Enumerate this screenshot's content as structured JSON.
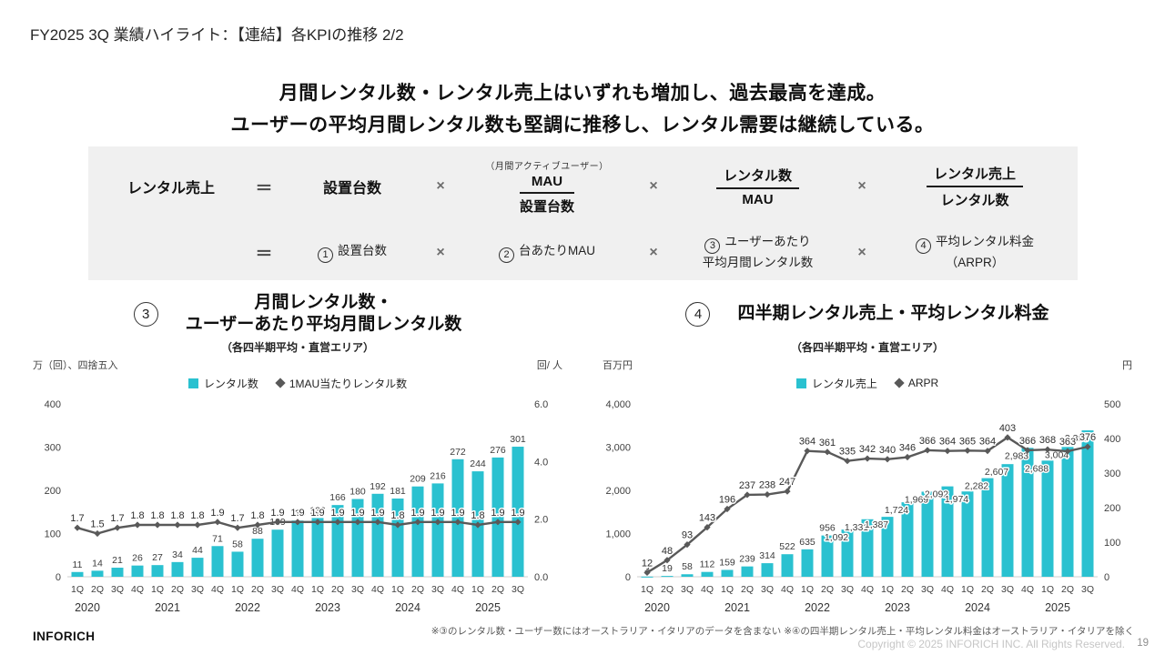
{
  "slide": {
    "title": "FY2025 3Q 業績ハイライト：【連結】各KPIの推移 2/2",
    "headline_line1": "月間レンタル数・レンタル売上はいずれも増加し、過去最高を達成。",
    "headline_line2": "ユーザーの平均月間レンタル数も堅調に推移し、レンタル需要は継続している。",
    "footnote": "※③のレンタル数・ユーザー数にはオーストラリア・イタリアのデータを含まない ※④の四半期レンタル売上・平均レンタル料金はオーストラリア・イタリアを除く",
    "logo": "INFORICH",
    "copyright": "Copyright © 2025 INFORICH INC. All Rights Reserved.",
    "page_number": "19"
  },
  "formula": {
    "lhs": "レンタル売上",
    "eq": "＝",
    "times": "×",
    "row1": {
      "term1": "設置台数",
      "frac1_note": "（月間アクティブユーザー）",
      "frac1_num": "MAU",
      "frac1_den": "設置台数",
      "frac2_num": "レンタル数",
      "frac2_den": "MAU",
      "frac3_num": "レンタル売上",
      "frac3_den": "レンタル数"
    },
    "row2": {
      "t1_num": "1",
      "t1_text": "設置台数",
      "t2_num": "2",
      "t2_text": "台あたりMAU",
      "t3_num": "3",
      "t3_line1": "ユーザーあたり",
      "t3_line2": "平均月間レンタル数",
      "t4_num": "4",
      "t4_line1": "平均レンタル料金",
      "t4_line2": "（ARPR）"
    }
  },
  "chart_data": [
    {
      "type": "bar+line",
      "badge_number": "3",
      "title_line1": "月間レンタル数・",
      "title_line2": "ユーザーあたり平均月間レンタル数",
      "subtitle": "（各四半期平均・直営エリア）",
      "legend": [
        {
          "label": "レンタル数",
          "type": "bar",
          "color": "#2ac1d0"
        },
        {
          "label": "1MAU当たりレンタル数",
          "type": "line",
          "color": "#595959"
        }
      ],
      "left_axis": {
        "unit": "万（回）、四捨五入",
        "ticks": [
          "0",
          "100",
          "200",
          "300",
          "400"
        ],
        "max": 400
      },
      "right_axis": {
        "unit": "回/ 人",
        "ticks": [
          "0.0",
          "2.0",
          "4.0",
          "6.0"
        ],
        "max": 6
      },
      "quarters": [
        "1Q",
        "2Q",
        "3Q",
        "4Q",
        "1Q",
        "2Q",
        "3Q",
        "4Q",
        "1Q",
        "2Q",
        "3Q",
        "4Q",
        "1Q",
        "2Q",
        "3Q",
        "4Q",
        "1Q",
        "2Q",
        "3Q",
        "4Q",
        "1Q",
        "2Q",
        "3Q"
      ],
      "years": [
        {
          "label": "2020",
          "quarters": 4
        },
        {
          "label": "2021",
          "quarters": 4
        },
        {
          "label": "2022",
          "quarters": 4
        },
        {
          "label": "2023",
          "quarters": 4
        },
        {
          "label": "2024",
          "quarters": 4
        },
        {
          "label": "2025",
          "quarters": 3
        }
      ],
      "bars": [
        11,
        14,
        21,
        26,
        27,
        34,
        44,
        71,
        58,
        88,
        109,
        130,
        136,
        166,
        180,
        192,
        181,
        209,
        216,
        272,
        244,
        276,
        301
      ],
      "bar_labels": [
        "11",
        "14",
        "21",
        "26",
        "27",
        "34",
        "44",
        "71",
        "58",
        "88",
        "109",
        "130",
        "136",
        "166",
        "180",
        "192",
        "181",
        "209",
        "216",
        "272",
        "244",
        "276",
        "301"
      ],
      "line": [
        1.7,
        1.5,
        1.7,
        1.8,
        1.8,
        1.8,
        1.8,
        1.9,
        1.7,
        1.8,
        1.9,
        1.9,
        1.9,
        1.9,
        1.9,
        1.9,
        1.8,
        1.9,
        1.9,
        1.9,
        1.8,
        1.9,
        1.9
      ],
      "line_labels": [
        "1.7",
        "1.5",
        "1.7",
        "1.8",
        "1.8",
        "1.8",
        "1.8",
        "1.9",
        "1.7",
        "1.8",
        "1.9",
        "1.9",
        "1.9",
        "1.9",
        "1.9",
        "1.9",
        "1.8",
        "1.9",
        "1.9",
        "1.9",
        "1.8",
        "1.9",
        "1.9"
      ],
      "colors": {
        "bar": "#2ac1d0",
        "line": "#595959"
      }
    },
    {
      "type": "bar+line",
      "badge_number": "4",
      "title_line1": "四半期レンタル売上・平均レンタル料金",
      "subtitle": "（各四半期平均・直営エリア）",
      "legend": [
        {
          "label": "レンタル売上",
          "type": "bar",
          "color": "#2ac1d0"
        },
        {
          "label": "ARPR",
          "type": "line",
          "color": "#595959"
        }
      ],
      "left_axis": {
        "unit": "百万円",
        "ticks": [
          "0",
          "1,000",
          "2,000",
          "3,000",
          "4,000"
        ],
        "max": 4000
      },
      "right_axis": {
        "unit": "円",
        "ticks": [
          "0",
          "100",
          "200",
          "300",
          "400",
          "500"
        ],
        "max": 500
      },
      "quarters": [
        "1Q",
        "2Q",
        "3Q",
        "4Q",
        "1Q",
        "2Q",
        "3Q",
        "4Q",
        "1Q",
        "2Q",
        "3Q",
        "4Q",
        "1Q",
        "2Q",
        "3Q",
        "4Q",
        "1Q",
        "2Q",
        "3Q",
        "4Q",
        "1Q",
        "2Q",
        "3Q"
      ],
      "years": [
        {
          "label": "2020",
          "quarters": 4
        },
        {
          "label": "2021",
          "quarters": 4
        },
        {
          "label": "2022",
          "quarters": 4
        },
        {
          "label": "2023",
          "quarters": 4
        },
        {
          "label": "2024",
          "quarters": 4
        },
        {
          "label": "2025",
          "quarters": 3
        }
      ],
      "bars": [
        3,
        19,
        58,
        112,
        159,
        239,
        314,
        522,
        635,
        956,
        1092,
        1331,
        1387,
        1724,
        1969,
        2092,
        1974,
        2282,
        2607,
        2983,
        2688,
        3004,
        3388
      ],
      "bar_labels": [
        "3",
        "19",
        "58",
        "112",
        "159",
        "239",
        "314",
        "522",
        "635",
        "956",
        "1,092",
        "1,331",
        "1,387",
        "1,724",
        "1,969",
        "2,092",
        "1,974",
        "2,282",
        "2,607",
        "2,983",
        "2,688",
        "3,004",
        "3,388"
      ],
      "label_inside_min": 1000,
      "line": [
        12,
        48,
        93,
        143,
        196,
        237,
        238,
        247,
        364,
        361,
        335,
        342,
        340,
        346,
        366,
        364,
        365,
        364,
        403,
        366,
        368,
        363,
        376
      ],
      "line_labels": [
        "12",
        "48",
        "93",
        "143",
        "196",
        "237",
        "238",
        "247",
        "364",
        "361",
        "335",
        "342",
        "340",
        "346",
        "366",
        "364",
        "365",
        "364",
        "403",
        "366",
        "368",
        "363",
        "376"
      ],
      "colors": {
        "bar": "#2ac1d0",
        "line": "#595959"
      }
    }
  ]
}
